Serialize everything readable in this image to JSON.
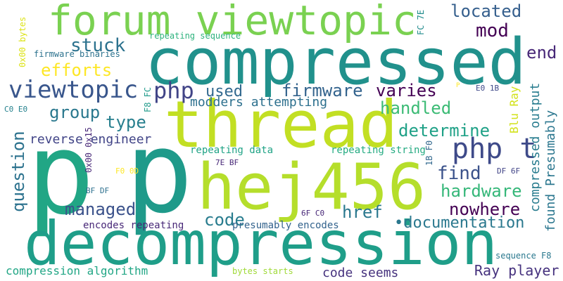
{
  "title": "",
  "words": [
    {
      "text": "p",
      "color": "#21a685"
    },
    {
      "text": "p",
      "color": "#1f9a8a"
    },
    {
      "text": "compressed",
      "color": "#21918c"
    },
    {
      "text": "decompression",
      "color": "#1f9e89"
    },
    {
      "text": "thread",
      "color": "#c2df23"
    },
    {
      "text": "hej456",
      "color": "#b5de2b"
    },
    {
      "text": "forum viewtopic",
      "color": "#7ad151"
    },
    {
      "text": "viewtopic",
      "color": "#39568c"
    },
    {
      "text": "php",
      "color": "#414487"
    },
    {
      "text": "php t",
      "color": "#3e4a89"
    },
    {
      "text": "stuck",
      "color": "#2c728e"
    },
    {
      "text": "located",
      "color": "#355f8d"
    },
    {
      "text": "mod",
      "color": "#440154"
    },
    {
      "text": "end",
      "color": "#482878"
    },
    {
      "text": "efforts",
      "color": "#fde725"
    },
    {
      "text": "used",
      "color": "#31688e"
    },
    {
      "text": "firmware",
      "color": "#33638d"
    },
    {
      "text": "varies",
      "color": "#440154"
    },
    {
      "text": "group",
      "color": "#2a788e"
    },
    {
      "text": "handled",
      "color": "#3cbb75"
    },
    {
      "text": "modders attempting",
      "color": "#2d708e"
    },
    {
      "text": "type",
      "color": "#277f8e"
    },
    {
      "text": "determine",
      "color": "#1fa187"
    },
    {
      "text": "reverse engineer",
      "color": "#414487"
    },
    {
      "text": "question",
      "color": "#2c728e"
    },
    {
      "text": "find",
      "color": "#3b528b"
    },
    {
      "text": "hardware",
      "color": "#35b779"
    },
    {
      "text": "managed",
      "color": "#3b528b"
    },
    {
      "text": "nowhere",
      "color": "#440154"
    },
    {
      "text": "href",
      "color": "#2a788e"
    },
    {
      "text": "code",
      "color": "#287c8e"
    },
    {
      "text": "•documentation",
      "color": "#2a788e"
    },
    {
      "text": "code seems",
      "color": "#46327e"
    },
    {
      "text": "Ray player",
      "color": "#46327e"
    },
    {
      "text": "compression algorithm",
      "color": "#21a685"
    },
    {
      "text": "encodes repeating",
      "color": "#482878"
    },
    {
      "text": "presumably encodes",
      "color": "#33638d"
    },
    {
      "text": "repeating data",
      "color": "#20a386"
    },
    {
      "text": "repeating string",
      "color": "#25ab82"
    },
    {
      "text": "repeating sequence",
      "color": "#2db27d"
    },
    {
      "text": "firmware binaries",
      "color": "#2c728e"
    },
    {
      "text": "bytes starts",
      "color": "#a0da39"
    },
    {
      "text": "sequence F8",
      "color": "#2a788e"
    },
    {
      "text": "0x00 bytes",
      "color": "#dde318"
    },
    {
      "text": "FC 7E",
      "color": "#228c8d"
    },
    {
      "text": "F8 FC",
      "color": "#1f9a8a"
    },
    {
      "text": "C0 E0",
      "color": "#26828e"
    },
    {
      "text": "0x00 0x15",
      "color": "#482878"
    },
    {
      "text": "7E BF",
      "color": "#482878"
    },
    {
      "text": "F0 0D",
      "color": "#fde725"
    },
    {
      "text": "BF DF",
      "color": "#2d708e"
    },
    {
      "text": "6F C0",
      "color": "#482878"
    },
    {
      "text": "DF 6F",
      "color": "#414487"
    },
    {
      "text": "E0 1B",
      "color": "#3e4989"
    },
    {
      "text": "1B F0",
      "color": "#31688e"
    },
    {
      "text": "Blu Ray",
      "color": "#d2e21b"
    },
    {
      "text": "compressed output",
      "color": "#287c8e"
    },
    {
      "text": "found Presumably",
      "color": "#2a768e"
    },
    {
      "text": "P",
      "color": "#fde725"
    }
  ]
}
